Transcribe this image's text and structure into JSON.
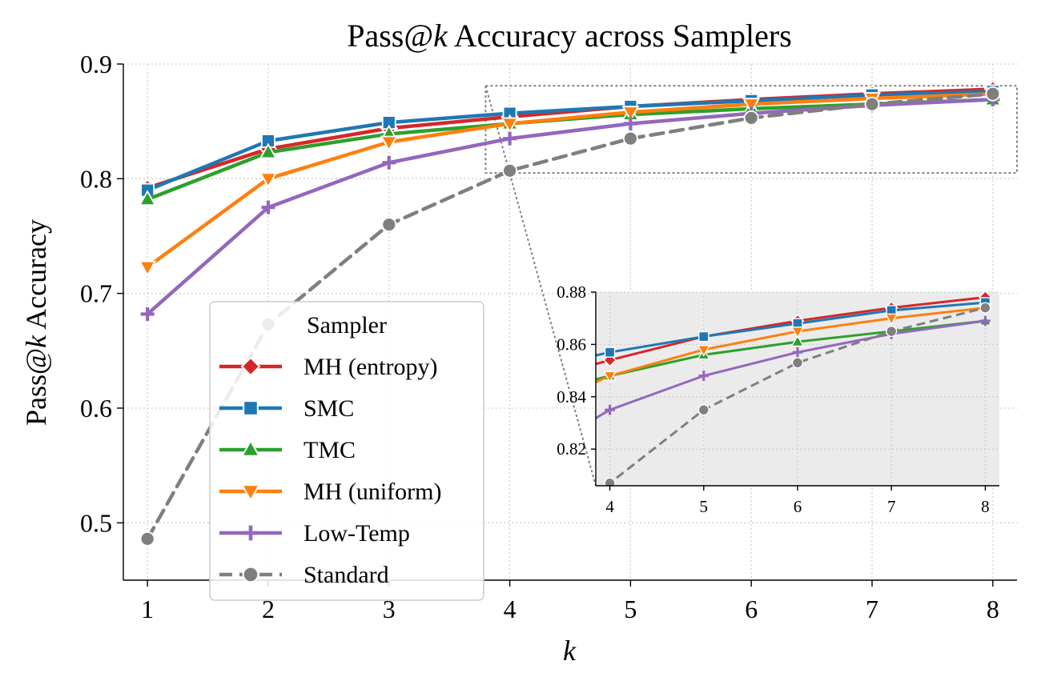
{
  "chart_data": {
    "type": "line",
    "title_prefix": "Pass@",
    "title_var": "k",
    "title_suffix": " Accuracy across Samplers",
    "ylabel_prefix": "Pass@",
    "ylabel_var": "k",
    "ylabel_suffix": " Accuracy",
    "xlabel": "k",
    "x": [
      1,
      2,
      3,
      4,
      5,
      6,
      7,
      8
    ],
    "xlim": [
      0.8,
      8.2
    ],
    "ylim": [
      0.45,
      0.9
    ],
    "yticks": [
      "0.5",
      "0.6",
      "0.7",
      "0.8",
      "0.9"
    ],
    "grid": true,
    "legend": {
      "title": "Sampler",
      "placement": "lower-left"
    },
    "series": [
      {
        "name": "MH (entropy)",
        "color": "#d62728",
        "marker": "diamond",
        "dashed": false,
        "values": [
          0.792,
          0.826,
          0.844,
          0.854,
          0.863,
          0.869,
          0.874,
          0.878
        ]
      },
      {
        "name": "SMC",
        "color": "#1f77b4",
        "marker": "square",
        "dashed": false,
        "values": [
          0.79,
          0.833,
          0.849,
          0.857,
          0.863,
          0.868,
          0.873,
          0.876
        ]
      },
      {
        "name": "TMC",
        "color": "#2ca02c",
        "marker": "triangle-up",
        "dashed": false,
        "values": [
          0.782,
          0.823,
          0.839,
          0.848,
          0.856,
          0.861,
          0.865,
          0.869
        ]
      },
      {
        "name": "MH (uniform)",
        "color": "#ff7f0e",
        "marker": "triangle-down",
        "dashed": false,
        "values": [
          0.723,
          0.8,
          0.832,
          0.848,
          0.858,
          0.865,
          0.87,
          0.874
        ]
      },
      {
        "name": "Low-Temp",
        "color": "#9467bd",
        "marker": "plus",
        "dashed": false,
        "values": [
          0.682,
          0.775,
          0.814,
          0.835,
          0.848,
          0.857,
          0.864,
          0.869
        ]
      },
      {
        "name": "Standard",
        "color": "#7f7f7f",
        "marker": "circle",
        "dashed": true,
        "values": [
          0.486,
          0.673,
          0.76,
          0.807,
          0.835,
          0.853,
          0.865,
          0.874
        ]
      }
    ],
    "inset": {
      "xlim": [
        3.85,
        8.15
      ],
      "ylim": [
        0.806,
        0.88
      ],
      "xticks": [
        4,
        5,
        6,
        7,
        8
      ],
      "yticks": [
        "0.82",
        "0.84",
        "0.86",
        "0.88"
      ],
      "background": "#ebebeb",
      "zoom_region": {
        "x": [
          3.8,
          8.2
        ],
        "y": [
          0.805,
          0.881
        ]
      }
    }
  }
}
